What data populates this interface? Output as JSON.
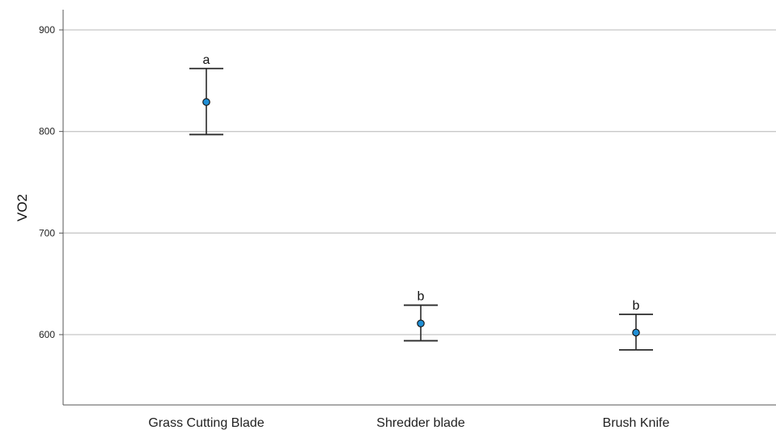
{
  "chart_data": {
    "type": "scatter",
    "ylabel": "VO2",
    "xlabel": "",
    "categories": [
      "Grass Cutting Blade",
      "Shredder blade",
      "Brush Knife"
    ],
    "yticks": [
      600,
      700,
      800,
      900
    ],
    "ylim": [
      530,
      920
    ],
    "grid": "horizontal",
    "series": [
      {
        "means": [
          829,
          611,
          602
        ],
        "error_low": [
          797,
          594,
          585
        ],
        "error_high": [
          862,
          629,
          620
        ],
        "annotations": [
          "a",
          "b",
          "b"
        ]
      }
    ],
    "colors": {
      "marker_fill": "#1f8fd6",
      "marker_stroke": "#1a1a1a",
      "error_bar": "#2a2a2a",
      "gridline": "#c8c8c8",
      "axis": "#555555"
    }
  }
}
